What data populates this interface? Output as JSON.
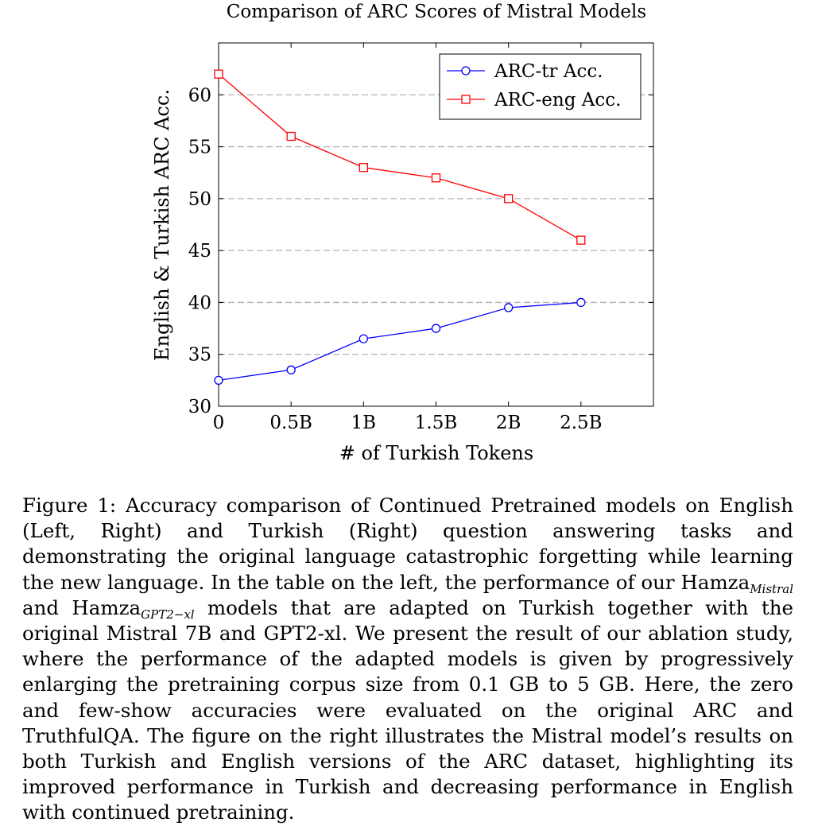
{
  "chart_data": {
    "type": "line",
    "title": "Comparison of ARC Scores of Mistral Models",
    "xlabel": "# of Turkish Tokens",
    "ylabel": "English & Turkish ARC Acc.",
    "categories": [
      "0",
      "0.5B",
      "1B",
      "1.5B",
      "2B",
      "2.5B"
    ],
    "x": [
      0,
      0.5,
      1,
      1.5,
      2,
      2.5
    ],
    "xlim": [
      0,
      3
    ],
    "ylim": [
      30,
      65
    ],
    "yticks": [
      30,
      35,
      40,
      45,
      50,
      55,
      60
    ],
    "grid": "horizontal dashed",
    "legend_position": "top-right",
    "series": [
      {
        "name": "ARC-tr Acc.",
        "marker": "circle",
        "color": "#0000ff",
        "values": [
          32.5,
          33.5,
          36.5,
          37.5,
          39.5,
          40.0
        ]
      },
      {
        "name": "ARC-eng Acc.",
        "marker": "square",
        "color": "#ff0000",
        "values": [
          62.0,
          56.0,
          53.0,
          52.0,
          50.0,
          46.0
        ]
      }
    ]
  },
  "caption": {
    "part1": "Figure 1: Accuracy comparison of Continued Pretrained models on English (Left, Right) and Turkish (Right) question answering tasks and demonstrating the original language catastrophic forgetting while learning the new language. In the table on the left, the performance of our ",
    "hamza1": "Hamza",
    "sub1": "Mistral",
    "and": " and ",
    "hamza2": "Hamza",
    "sub2": "GPT2−xl",
    "part2": " models that are adapted on Turkish together with the original Mistral 7B and GPT2-xl. We present the result of our ablation study, where the performance of the adapted models is given by progressively enlarging the pretraining corpus size from 0.1 GB to 5 GB. Here, the zero and few-show accuracies were evaluated on the original ARC and TruthfulQA. The figure on the right illustrates the Mistral model’s results on both Turkish and English versions of the ARC dataset, highlighting its improved performance in Turkish and decreasing performance in English with continued pretraining."
  }
}
